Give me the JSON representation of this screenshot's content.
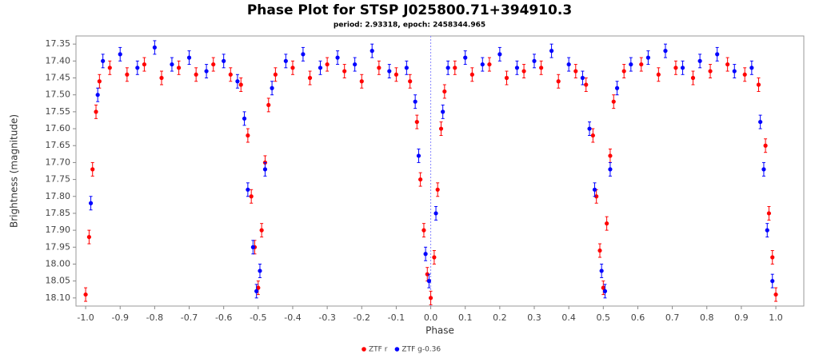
{
  "chart_data": {
    "type": "scatter",
    "title": "Phase Plot for STSP J025800.71+394910.3",
    "subtitle": "period: 2.93318, epoch: 2458344.965",
    "x_label": "Phase",
    "y_label": "Brightness (magnitude)",
    "xlim": [
      -1.028,
      1.081
    ],
    "ylim": [
      18.124,
      17.326
    ],
    "xticks": [
      {
        "value": -1.0,
        "label": "-1.0"
      },
      -0.9,
      -0.8,
      -0.7,
      -0.6,
      -0.5,
      -0.4,
      -0.3,
      -0.2,
      -0.1,
      {
        "value": 0,
        "label": "0.0"
      },
      0.1,
      0.2,
      0.3,
      0.4,
      0.5,
      0.6,
      0.7,
      0.8,
      0.9,
      {
        "value": 1.0,
        "label": "1.0"
      }
    ],
    "yticks": [
      17.35,
      {
        "value": 17.4,
        "label": "17.40"
      },
      17.45,
      {
        "value": 17.5,
        "label": "17.50"
      },
      17.55,
      {
        "value": 17.6,
        "label": "17.60"
      },
      17.65,
      {
        "value": 17.7,
        "label": "17.70"
      },
      17.75,
      {
        "value": 17.8,
        "label": "17.80"
      },
      17.85,
      {
        "value": 17.9,
        "label": "17.90"
      },
      17.95,
      {
        "value": 18.0,
        "label": "18.00"
      },
      18.05,
      {
        "value": 18.1,
        "label": "18.10"
      }
    ],
    "vline": 0,
    "legend": "bottom",
    "series": [
      {
        "name": "ZTF r",
        "color": "#ff0000",
        "error": 0.02,
        "x": [
          -1.0,
          -0.99,
          -0.98,
          -0.97,
          -0.96,
          -0.93,
          -0.88,
          -0.83,
          -0.78,
          -0.73,
          -0.68,
          -0.63,
          -0.58,
          -0.55,
          -0.53,
          -0.52,
          -0.51,
          -0.5,
          -0.49,
          -0.48,
          -0.47,
          -0.45,
          -0.4,
          -0.35,
          -0.3,
          -0.25,
          -0.2,
          -0.15,
          -0.1,
          -0.06,
          -0.04,
          -0.03,
          -0.02,
          -0.01,
          0,
          0.01,
          0.02,
          0.03,
          0.04,
          0.07,
          0.12,
          0.17,
          0.22,
          0.27,
          0.32,
          0.37,
          0.42,
          0.45,
          0.47,
          0.48,
          0.49,
          0.5,
          0.51,
          0.52,
          0.53,
          0.56,
          0.61,
          0.66,
          0.71,
          0.76,
          0.81,
          0.86,
          0.91,
          0.95,
          0.97,
          0.98,
          0.99,
          1.0
        ],
        "values": [
          18.09,
          17.92,
          17.72,
          17.55,
          17.46,
          17.42,
          17.44,
          17.41,
          17.45,
          17.42,
          17.44,
          17.41,
          17.44,
          17.47,
          17.62,
          17.8,
          17.95,
          18.07,
          17.9,
          17.7,
          17.53,
          17.44,
          17.42,
          17.45,
          17.41,
          17.43,
          17.46,
          17.42,
          17.44,
          17.46,
          17.58,
          17.75,
          17.9,
          18.03,
          18.1,
          17.98,
          17.78,
          17.6,
          17.49,
          17.42,
          17.44,
          17.41,
          17.45,
          17.43,
          17.42,
          17.46,
          17.43,
          17.47,
          17.62,
          17.8,
          17.96,
          18.07,
          17.88,
          17.68,
          17.52,
          17.43,
          17.41,
          17.44,
          17.42,
          17.45,
          17.43,
          17.41,
          17.44,
          17.47,
          17.65,
          17.85,
          17.98,
          18.09
        ]
      },
      {
        "name": "ZTF g-0.36",
        "color": "#0000ff",
        "error": 0.02,
        "x": [
          -0.985,
          -0.965,
          -0.95,
          -0.9,
          -0.85,
          -0.8,
          -0.75,
          -0.7,
          -0.65,
          -0.6,
          -0.56,
          -0.54,
          -0.53,
          -0.515,
          -0.505,
          -0.495,
          -0.48,
          -0.46,
          -0.42,
          -0.37,
          -0.32,
          -0.27,
          -0.22,
          -0.17,
          -0.12,
          -0.07,
          -0.045,
          -0.035,
          -0.015,
          -0.005,
          0.015,
          0.035,
          0.05,
          0.1,
          0.15,
          0.2,
          0.25,
          0.3,
          0.35,
          0.4,
          0.44,
          0.46,
          0.475,
          0.495,
          0.505,
          0.52,
          0.54,
          0.58,
          0.63,
          0.68,
          0.73,
          0.78,
          0.83,
          0.88,
          0.93,
          0.955,
          0.965,
          0.975,
          0.99
        ],
        "values": [
          17.82,
          17.5,
          17.4,
          17.38,
          17.42,
          17.36,
          17.41,
          17.39,
          17.43,
          17.4,
          17.46,
          17.57,
          17.78,
          17.95,
          18.08,
          18.02,
          17.72,
          17.48,
          17.4,
          17.38,
          17.42,
          17.39,
          17.41,
          17.37,
          17.43,
          17.42,
          17.52,
          17.68,
          17.97,
          18.05,
          17.85,
          17.55,
          17.42,
          17.39,
          17.41,
          17.38,
          17.42,
          17.4,
          17.37,
          17.41,
          17.45,
          17.6,
          17.78,
          18.02,
          18.08,
          17.72,
          17.48,
          17.41,
          17.39,
          17.37,
          17.42,
          17.4,
          17.38,
          17.43,
          17.42,
          17.58,
          17.72,
          17.9,
          18.05
        ]
      }
    ]
  }
}
